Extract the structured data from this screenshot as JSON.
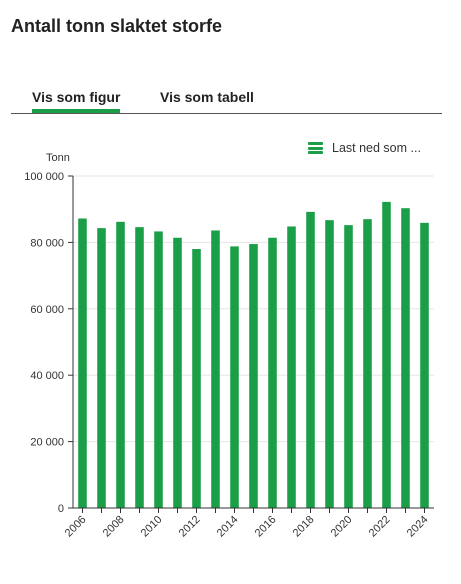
{
  "page": {
    "title": "Antall tonn slaktet storfe",
    "tabs": [
      {
        "label": "Vis som figur",
        "active": true
      },
      {
        "label": "Vis som tabell",
        "active": false
      }
    ],
    "download_label": "Last ned som ...",
    "download_icon": "hamburger-menu-icon"
  },
  "chart_data": {
    "type": "bar",
    "title": "Antall tonn slaktet storfe",
    "ylabel": "Tonn",
    "xlabel": "",
    "ylim": [
      0,
      100000
    ],
    "yticks": [
      0,
      20000,
      40000,
      60000,
      80000,
      100000
    ],
    "ytick_labels": [
      "0",
      "20 000",
      "40 000",
      "60 000",
      "80 000",
      "100 000"
    ],
    "xtick_labels": [
      "2006",
      "2008",
      "2010",
      "2012",
      "2014",
      "2016",
      "2018",
      "2020",
      "2022",
      "2024"
    ],
    "categories": [
      "2006",
      "2007",
      "2008",
      "2009",
      "2010",
      "2011",
      "2012",
      "2013",
      "2014",
      "2015",
      "2016",
      "2017",
      "2018",
      "2019",
      "2020",
      "2021",
      "2022",
      "2023",
      "2024"
    ],
    "values": [
      87200,
      84300,
      86200,
      84600,
      83300,
      81400,
      78000,
      83600,
      78800,
      79500,
      81400,
      84800,
      89200,
      86700,
      85200,
      87000,
      92200,
      90300,
      85900
    ],
    "bar_color": "#1a9e48",
    "grid": true,
    "legend": "none"
  }
}
